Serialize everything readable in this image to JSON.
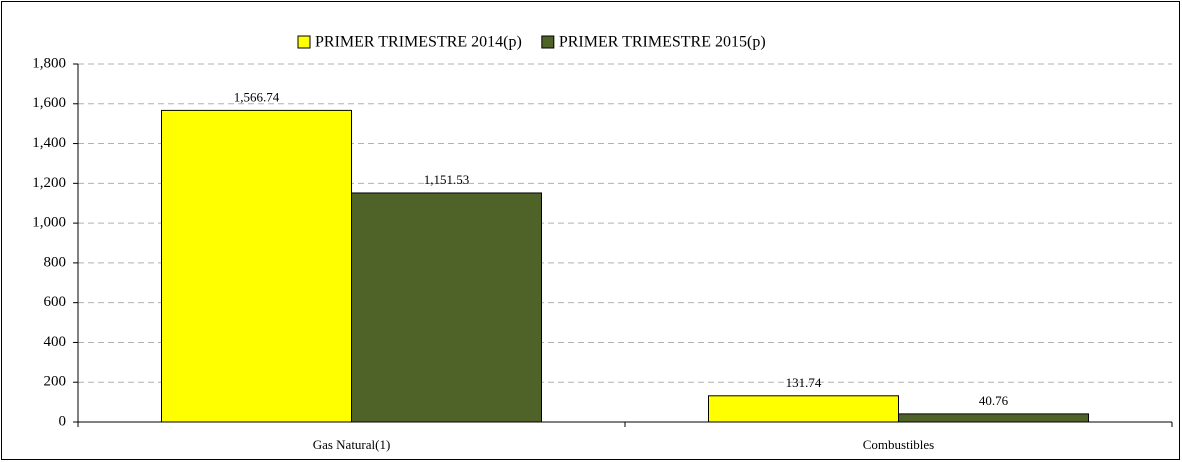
{
  "chart_data": {
    "type": "bar",
    "categories": [
      "Gas Natural(1)",
      "Combustibles"
    ],
    "series": [
      {
        "name": "PRIMER TRIMESTRE 2014(p)",
        "color": "#ffff00",
        "values": [
          1566.74,
          131.74
        ],
        "value_labels": [
          "1,566.74",
          "131.74"
        ]
      },
      {
        "name": "PRIMER TRIMESTRE 2015(p)",
        "color": "#4f6228",
        "values": [
          1151.53,
          40.76
        ],
        "value_labels": [
          "1,151.53",
          "40.76"
        ]
      }
    ],
    "ylim": [
      0,
      1800
    ],
    "yticks": [
      0,
      200,
      400,
      600,
      800,
      {
        "value": 1000,
        "label": "1,000"
      },
      {
        "value": 1200,
        "label": "1,200"
      },
      {
        "value": 1400,
        "label": "1,400"
      },
      {
        "value": 1600,
        "label": "1,600"
      },
      {
        "value": 1800,
        "label": "1,800"
      }
    ],
    "grid": true,
    "legend": "top"
  }
}
